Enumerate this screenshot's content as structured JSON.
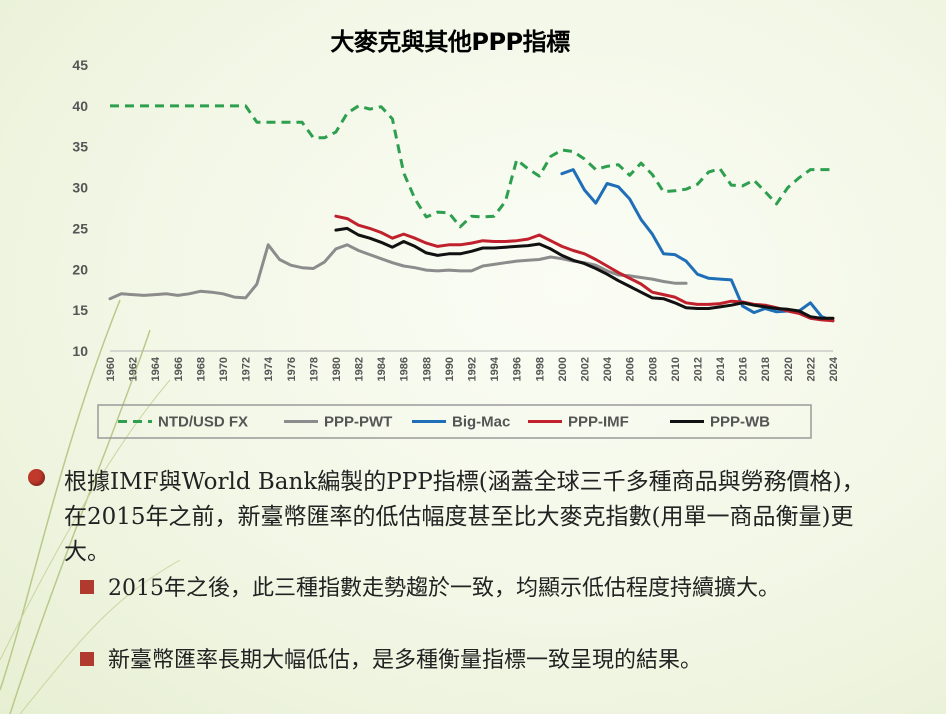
{
  "slide": {
    "bullet_main": "根據IMF與World Bank編製的PPP指標(涵蓋全球三千多種商品與勞務價格)，在2015年之前，新臺幣匯率的低估幅度甚至比大麥克指數(用單一商品衡量)更大。",
    "sub_bullets": [
      "2015年之後，此三種指數走勢趨於一致，均顯示低估程度持續擴大。",
      "新臺幣匯率長期大幅低估，是多種衡量指標一致呈現的結果。"
    ]
  },
  "chart_data": {
    "type": "line",
    "title": "大麥克與其他PPP指標",
    "xlabel": "",
    "ylabel": "",
    "ylim": [
      10,
      45
    ],
    "yticks": [
      10,
      15,
      20,
      25,
      30,
      35,
      40,
      45
    ],
    "xlim": [
      1960,
      2024
    ],
    "xticks": [
      1960,
      1962,
      1964,
      1966,
      1968,
      1970,
      1972,
      1974,
      1976,
      1978,
      1980,
      1982,
      1984,
      1986,
      1988,
      1990,
      1992,
      1994,
      1996,
      1998,
      2000,
      2002,
      2004,
      2006,
      2008,
      2010,
      2012,
      2014,
      2016,
      2018,
      2020,
      2022,
      2024
    ],
    "grid": false,
    "legend_position": "bottom",
    "series": [
      {
        "name": "NTD/USD FX",
        "color": "#2e9e4f",
        "dash": true,
        "x": [
          1960,
          1961,
          1962,
          1963,
          1964,
          1965,
          1966,
          1967,
          1968,
          1969,
          1970,
          1971,
          1972,
          1973,
          1974,
          1975,
          1976,
          1977,
          1978,
          1979,
          1980,
          1981,
          1982,
          1983,
          1984,
          1985,
          1986,
          1987,
          1988,
          1989,
          1990,
          1991,
          1992,
          1993,
          1994,
          1995,
          1996,
          1997,
          1998,
          1999,
          2000,
          2001,
          2002,
          2003,
          2004,
          2005,
          2006,
          2007,
          2008,
          2009,
          2010,
          2011,
          2012,
          2013,
          2014,
          2015,
          2016,
          2017,
          2018,
          2019,
          2020,
          2021,
          2022,
          2023,
          2024
        ],
        "y": [
          40,
          40,
          40,
          40,
          40,
          40,
          40,
          40,
          40,
          40,
          40,
          40,
          40,
          38,
          38,
          38,
          38,
          38,
          36.1,
          36.1,
          36.8,
          39.1,
          40,
          39.6,
          39.9,
          38.4,
          31.8,
          28.6,
          26.4,
          27,
          26.9,
          25.2,
          26.5,
          26.4,
          26.5,
          28.3,
          33.4,
          32.3,
          31.4,
          33.8,
          34.6,
          34.4,
          33.5,
          32.2,
          32.6,
          32.8,
          31.5,
          33,
          31.6,
          29.5,
          29.6,
          29.8,
          30.4,
          31.9,
          32.3,
          30.3,
          30.2,
          30.9,
          29.5,
          28,
          30,
          31.2,
          32.2,
          32.2,
          32.2
        ]
      },
      {
        "name": "PPP-PWT",
        "color": "#8c8c8c",
        "dash": false,
        "x": [
          1960,
          1961,
          1962,
          1963,
          1964,
          1965,
          1966,
          1967,
          1968,
          1969,
          1970,
          1971,
          1972,
          1973,
          1974,
          1975,
          1976,
          1977,
          1978,
          1979,
          1980,
          1981,
          1982,
          1983,
          1984,
          1985,
          1986,
          1987,
          1988,
          1989,
          1990,
          1991,
          1992,
          1993,
          1994,
          1995,
          1996,
          1997,
          1998,
          1999,
          2000,
          2001,
          2002,
          2003,
          2004,
          2005,
          2006,
          2007,
          2008,
          2009,
          2010,
          2011
        ],
        "y": [
          16.4,
          17,
          16.9,
          16.8,
          16.9,
          17,
          16.8,
          17,
          17.3,
          17.2,
          17,
          16.6,
          16.5,
          18.2,
          23,
          21.2,
          20.5,
          20.2,
          20.1,
          20.9,
          22.5,
          23,
          22.3,
          21.8,
          21.3,
          20.8,
          20.4,
          20.2,
          19.9,
          19.8,
          19.9,
          19.8,
          19.8,
          20.4,
          20.6,
          20.8,
          21,
          21.1,
          21.2,
          21.5,
          21.3,
          21,
          20.8,
          20.5,
          19.8,
          19.3,
          19.2,
          19,
          18.8,
          18.5,
          18.3,
          18.3
        ]
      },
      {
        "name": "Big-Mac",
        "color": "#1f6fb8",
        "dash": false,
        "x": [
          2000,
          2001,
          2002,
          2003,
          2004,
          2005,
          2006,
          2007,
          2008,
          2009,
          2010,
          2011,
          2012,
          2013,
          2014,
          2015,
          2016,
          2017,
          2018,
          2019,
          2020,
          2021,
          2022,
          2023,
          2024
        ],
        "y": [
          31.7,
          32.2,
          29.7,
          28.1,
          30.5,
          30.1,
          28.6,
          26.1,
          24.3,
          21.9,
          21.8,
          21,
          19.4,
          18.9,
          18.8,
          18.7,
          15.5,
          14.7,
          15.2,
          14.8,
          14.9,
          14.9,
          15.9,
          14.2,
          13.7
        ]
      },
      {
        "name": "PPP-IMF",
        "color": "#c0212d",
        "dash": false,
        "x": [
          1980,
          1981,
          1982,
          1983,
          1984,
          1985,
          1986,
          1987,
          1988,
          1989,
          1990,
          1991,
          1992,
          1993,
          1994,
          1995,
          1996,
          1997,
          1998,
          1999,
          2000,
          2001,
          2002,
          2003,
          2004,
          2005,
          2006,
          2007,
          2008,
          2009,
          2010,
          2011,
          2012,
          2013,
          2014,
          2015,
          2016,
          2017,
          2018,
          2019,
          2020,
          2021,
          2022,
          2023,
          2024
        ],
        "y": [
          26.5,
          26.2,
          25.4,
          25,
          24.5,
          23.8,
          24.3,
          23.8,
          23.2,
          22.8,
          23,
          23,
          23.2,
          23.5,
          23.4,
          23.4,
          23.5,
          23.7,
          24.2,
          23.5,
          22.8,
          22.3,
          21.9,
          21.2,
          20.4,
          19.6,
          18.9,
          18.2,
          17.2,
          16.9,
          16.6,
          15.9,
          15.7,
          15.7,
          15.8,
          16.1,
          16,
          15.7,
          15.6,
          15.3,
          14.9,
          14.6,
          14,
          13.8,
          13.7
        ]
      },
      {
        "name": "PPP-WB",
        "color": "#111111",
        "dash": false,
        "x": [
          1980,
          1981,
          1982,
          1983,
          1984,
          1985,
          1986,
          1987,
          1988,
          1989,
          1990,
          1991,
          1992,
          1993,
          1994,
          1995,
          1996,
          1997,
          1998,
          1999,
          2000,
          2001,
          2002,
          2003,
          2004,
          2005,
          2006,
          2007,
          2008,
          2009,
          2010,
          2011,
          2012,
          2013,
          2014,
          2015,
          2016,
          2017,
          2018,
          2019,
          2020,
          2021,
          2022,
          2023,
          2024
        ],
        "y": [
          24.8,
          25,
          24.2,
          23.8,
          23.3,
          22.7,
          23.4,
          22.8,
          22,
          21.7,
          21.9,
          21.9,
          22.2,
          22.6,
          22.6,
          22.7,
          22.8,
          22.9,
          23.1,
          22.5,
          21.7,
          21.1,
          20.7,
          20.1,
          19.4,
          18.6,
          17.9,
          17.2,
          16.5,
          16.4,
          15.9,
          15.3,
          15.2,
          15.2,
          15.4,
          15.6,
          15.9,
          15.6,
          15.4,
          15.2,
          15.1,
          14.9,
          14.2,
          14,
          14
        ]
      }
    ]
  }
}
